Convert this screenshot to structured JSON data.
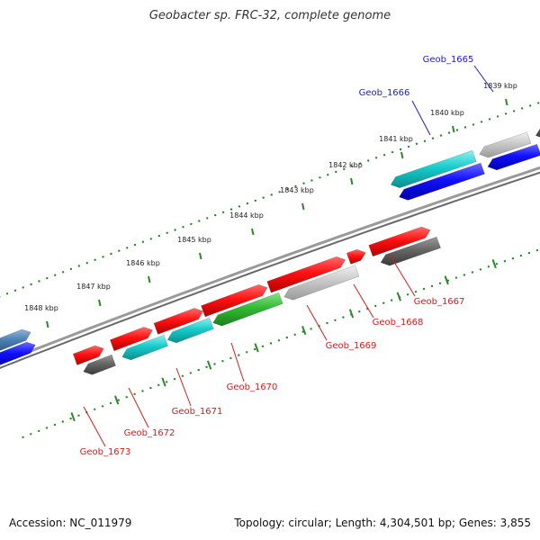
{
  "title": "Geobacter sp. FRC-32, complete genome",
  "footer": {
    "accession": "Accession: NC_011979",
    "summary": "Topology: circular; Length: 4,304,501 bp; Genes: 3,855"
  },
  "colors": {
    "label_blue": "#1a1ad6",
    "label_red": "#d61a1a",
    "tick_green": "#2a8a2a",
    "backbone": "#8a8a8a"
  },
  "ticks": [
    {
      "label": "1839 kbp"
    },
    {
      "label": "1840 kbp"
    },
    {
      "label": "1841 kbp"
    },
    {
      "label": "1842 kbp"
    },
    {
      "label": "1843 kbp"
    },
    {
      "label": "1844 kbp"
    },
    {
      "label": "1845 kbp"
    },
    {
      "label": "1846 kbp"
    },
    {
      "label": "1847 kbp"
    },
    {
      "label": "1848 kbp"
    }
  ],
  "genes": [
    {
      "label": "Geob_1665",
      "color": "blue"
    },
    {
      "label": "Geob_1666",
      "color": "blue"
    },
    {
      "label": "Geob_1667",
      "color": "red"
    },
    {
      "label": "Geob_1668",
      "color": "red"
    },
    {
      "label": "Geob_1669",
      "color": "red"
    },
    {
      "label": "Geob_1670",
      "color": "red"
    },
    {
      "label": "Geob_1671",
      "color": "red"
    },
    {
      "label": "Geob_1672",
      "color": "red"
    },
    {
      "label": "Geob_1673",
      "color": "red"
    }
  ]
}
